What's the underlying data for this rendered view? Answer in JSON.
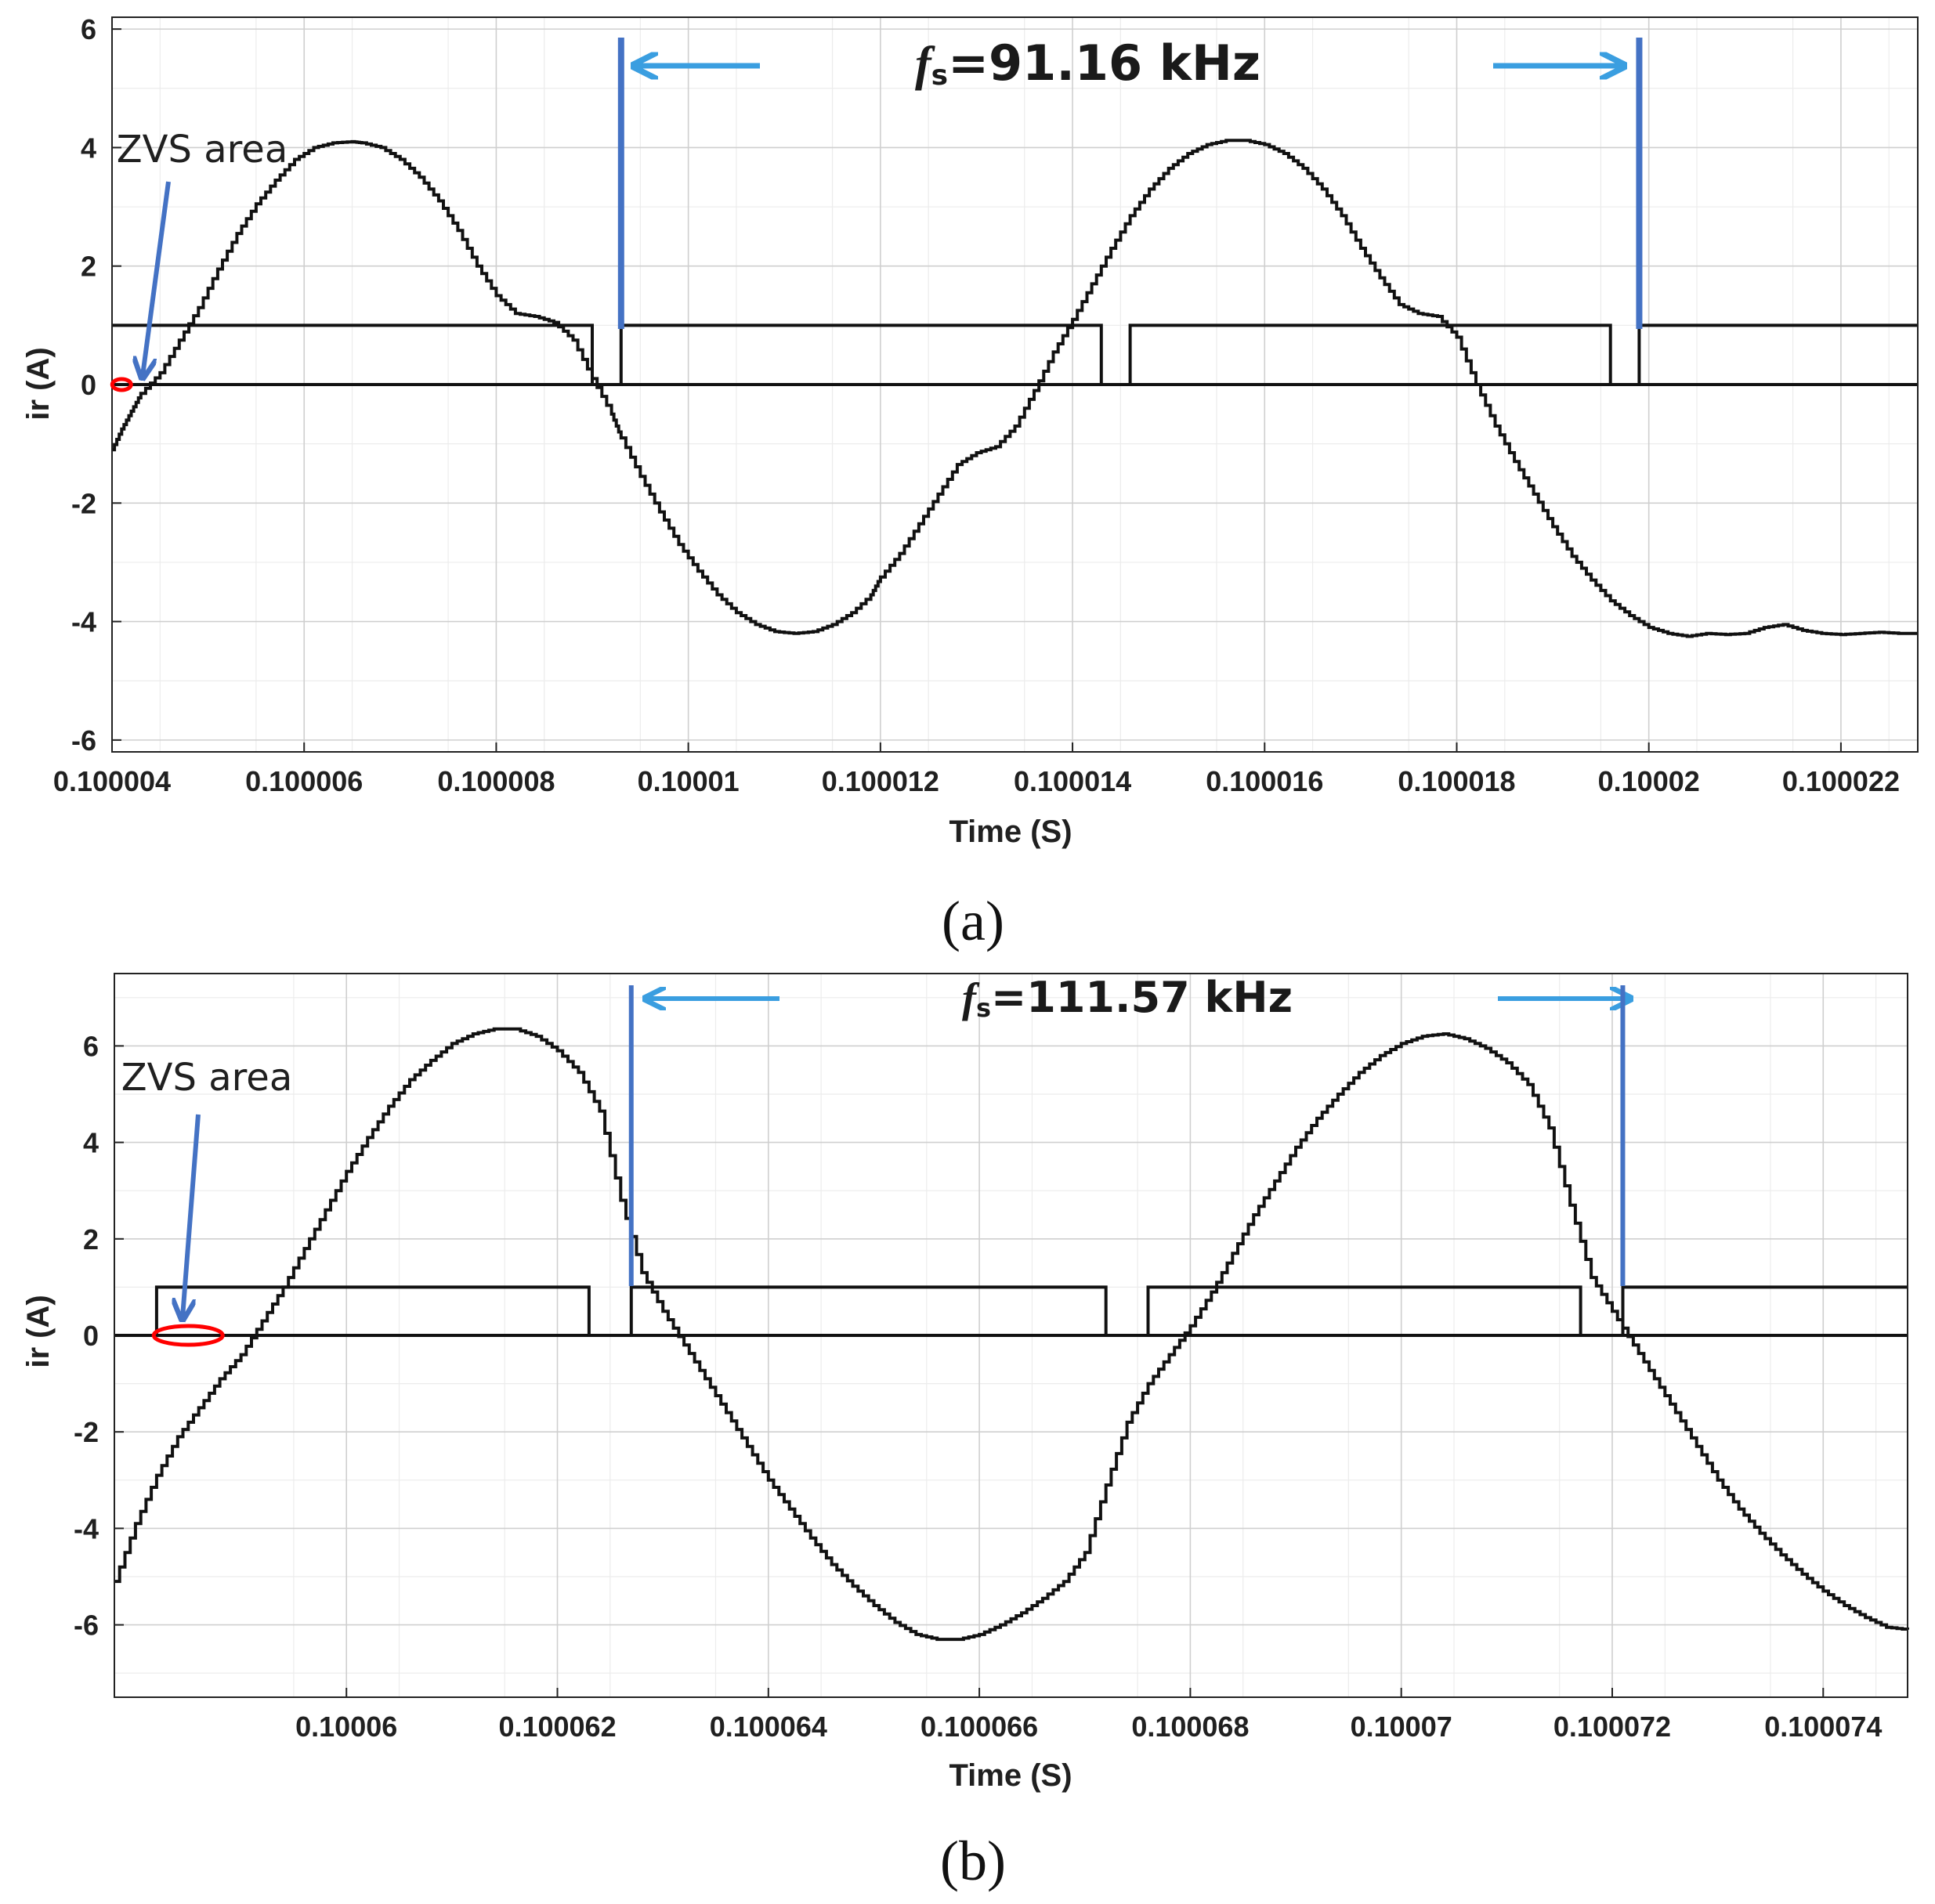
{
  "chart_data": [
    {
      "type": "line",
      "panel_label": "(a)",
      "xlabel": "Time (S)",
      "ylabel": "ir (A)",
      "xlim": [
        0.100004,
        0.1000228
      ],
      "ylim": [
        -6.2,
        6.2
      ],
      "x_ticks": [
        0.100004,
        0.100006,
        0.100008,
        0.10001,
        0.100012,
        0.100014,
        0.100016,
        0.100018,
        0.10002,
        0.100022
      ],
      "x_tick_labels": [
        "0.100004",
        "0.100006",
        "0.100008",
        "0.10001",
        "0.100012",
        "0.100014",
        "0.100016",
        "0.100018",
        "0.10002",
        "0.100022"
      ],
      "y_ticks": [
        -6,
        -4,
        -2,
        0,
        2,
        4,
        6
      ],
      "y_tick_labels": [
        "-6",
        "-4",
        "-2",
        "0",
        "2",
        "4",
        "6"
      ],
      "grid": true,
      "series": [
        {
          "name": "ir",
          "color": "#111111",
          "x": [
            0.100004,
            0.1000041,
            0.1000042,
            0.1000043,
            0.1000045,
            0.1000047,
            0.1000049,
            0.1000051,
            0.1000053,
            0.1000055,
            0.1000057,
            0.1000059,
            0.1000061,
            0.1000063,
            0.1000065,
            0.1000066,
            0.1000068,
            0.100007,
            0.1000072,
            0.1000074,
            0.1000076,
            0.1000078,
            0.100008,
            0.1000082,
            0.1000084,
            0.1000086,
            0.1000088,
            0.100009,
            0.1000092,
            0.1000093,
            0.1000095,
            0.1000097,
            0.1000099,
            0.1000101,
            0.1000103,
            0.1000105,
            0.1000107,
            0.1000109,
            0.1000111,
            0.1000113,
            0.1000115,
            0.1000117,
            0.1000119,
            0.100012,
            0.1000122,
            0.1000124,
            0.1000126,
            0.1000128,
            0.100013,
            0.1000132,
            0.1000134,
            0.1000136,
            0.1000138,
            0.100014,
            0.1000142,
            0.1000144,
            0.1000146,
            0.1000148,
            0.100015,
            0.1000152,
            0.1000154,
            0.1000156,
            0.1000158,
            0.100016,
            0.1000162,
            0.1000164,
            0.1000166,
            0.1000168,
            0.100017,
            0.1000172,
            0.1000174,
            0.1000176,
            0.1000178,
            0.100018,
            0.1000182,
            0.1000184,
            0.1000186,
            0.1000188,
            0.100019,
            0.1000192,
            0.1000194,
            0.1000196,
            0.1000198,
            0.10002,
            0.1000202,
            0.1000204,
            0.1000206,
            0.1000208,
            0.100021,
            0.1000212,
            0.1000214,
            0.1000216,
            0.1000218,
            0.100022,
            0.1000222,
            0.1000224,
            0.1000226,
            0.1000228
          ],
          "y": [
            -1.1,
            -0.75,
            -0.45,
            -0.15,
            0.2,
            0.75,
            1.3,
            1.95,
            2.55,
            3.05,
            3.45,
            3.8,
            4.0,
            4.08,
            4.1,
            4.08,
            4.0,
            3.8,
            3.5,
            3.1,
            2.6,
            2.0,
            1.5,
            1.2,
            1.15,
            1.05,
            0.75,
            0.1,
            -0.5,
            -0.9,
            -1.55,
            -2.15,
            -2.7,
            -3.15,
            -3.55,
            -3.85,
            -4.05,
            -4.17,
            -4.2,
            -4.17,
            -4.05,
            -3.85,
            -3.55,
            -3.25,
            -2.85,
            -2.35,
            -1.85,
            -1.35,
            -1.15,
            -1.05,
            -0.7,
            -0.1,
            0.55,
            1.1,
            1.7,
            2.3,
            2.85,
            3.3,
            3.65,
            3.9,
            4.05,
            4.12,
            4.12,
            4.05,
            3.9,
            3.65,
            3.3,
            2.85,
            2.3,
            1.8,
            1.35,
            1.2,
            1.15,
            0.8,
            0.0,
            -0.7,
            -1.3,
            -1.85,
            -2.4,
            -2.9,
            -3.3,
            -3.65,
            -3.9,
            -4.1,
            -4.2,
            -4.25,
            -4.2,
            -4.22,
            -4.2,
            -4.1,
            -4.05,
            -4.15,
            -4.2,
            -4.22,
            -4.2,
            -4.18,
            -4.2,
            -4.2
          ]
        },
        {
          "name": "gate signal",
          "color": "#111111",
          "x": [
            0.100004,
            0.100009,
            0.100009,
            0.1000093,
            0.1000093,
            0.1000143,
            0.1000143,
            0.1000146,
            0.1000146,
            0.1000196,
            0.1000196,
            0.1000199,
            0.1000199,
            0.1000228
          ],
          "y": [
            1,
            1,
            0,
            0,
            1,
            1,
            0,
            0,
            1,
            1,
            0,
            0,
            1,
            1
          ]
        }
      ],
      "annotations": {
        "zvs_label": "ZVS area",
        "fs_symbol": "f",
        "fs_subscript": "s",
        "fs_value": "=91.16 kHz",
        "period_markers_x": [
          0.1000093,
          0.1000199
        ],
        "zvs_ellipse_center": [
          0.1000041,
          0.0
        ],
        "arrow_color": "#3a9ee0",
        "marker_color": "#4472c4",
        "ellipse_color": "#ff0000"
      }
    },
    {
      "type": "line",
      "panel_label": "(b)",
      "xlabel": "Time (S)",
      "ylabel": "ir (A)",
      "xlim": [
        0.1000578,
        0.1000748
      ],
      "ylim": [
        -7.5,
        7.5
      ],
      "x_ticks": [
        0.10006,
        0.100062,
        0.100064,
        0.100066,
        0.100068,
        0.10007,
        0.100072,
        0.100074
      ],
      "x_tick_labels": [
        "0.10006",
        "0.100062",
        "0.100064",
        "0.100066",
        "0.100068",
        "0.10007",
        "0.100072",
        "0.100074"
      ],
      "y_ticks": [
        -6,
        -4,
        -2,
        0,
        2,
        4,
        6
      ],
      "y_tick_labels": [
        "-6",
        "-4",
        "-2",
        "0",
        "2",
        "4",
        "6"
      ],
      "grid": true,
      "series": [
        {
          "name": "ir",
          "color": "#111111",
          "x": [
            0.1000578,
            0.100058,
            0.1000582,
            0.1000584,
            0.1000586,
            0.1000588,
            0.100059,
            0.1000592,
            0.1000594,
            0.1000596,
            0.1000598,
            0.10006,
            0.1000602,
            0.1000604,
            0.1000606,
            0.1000608,
            0.100061,
            0.1000612,
            0.1000614,
            0.1000616,
            0.1000618,
            0.100062,
            0.1000622,
            0.1000624,
            0.1000626,
            0.1000628,
            0.100063,
            0.1000632,
            0.1000634,
            0.1000636,
            0.1000638,
            0.100064,
            0.1000642,
            0.1000644,
            0.1000646,
            0.1000648,
            0.100065,
            0.1000652,
            0.1000654,
            0.1000656,
            0.1000658,
            0.100066,
            0.1000662,
            0.1000664,
            0.1000666,
            0.1000668,
            0.100067,
            0.1000672,
            0.1000674,
            0.1000676,
            0.1000678,
            0.100068,
            0.1000682,
            0.1000684,
            0.1000686,
            0.1000688,
            0.100069,
            0.1000692,
            0.1000694,
            0.1000696,
            0.1000698,
            0.10007,
            0.1000702,
            0.1000704,
            0.1000706,
            0.1000708,
            0.100071,
            0.1000712,
            0.1000714,
            0.1000716,
            0.1000718,
            0.100072,
            0.1000722,
            0.1000724,
            0.1000726,
            0.1000728,
            0.100073,
            0.1000732,
            0.1000734,
            0.1000736,
            0.1000738,
            0.100074,
            0.1000742,
            0.1000744,
            0.1000746,
            0.1000748
          ],
          "y": [
            -5.1,
            -3.9,
            -2.9,
            -2.1,
            -1.5,
            -0.9,
            -0.4,
            0.3,
            1.0,
            1.8,
            2.6,
            3.4,
            4.1,
            4.75,
            5.3,
            5.7,
            6.05,
            6.25,
            6.35,
            6.35,
            6.2,
            5.9,
            5.45,
            4.65,
            2.8,
            1.3,
            0.5,
            -0.2,
            -0.9,
            -1.6,
            -2.3,
            -3.0,
            -3.6,
            -4.2,
            -4.75,
            -5.2,
            -5.6,
            -5.95,
            -6.2,
            -6.3,
            -6.3,
            -6.2,
            -6.0,
            -5.75,
            -5.45,
            -5.1,
            -4.5,
            -3.1,
            -1.8,
            -1.0,
            -0.4,
            0.2,
            0.9,
            1.7,
            2.5,
            3.2,
            3.9,
            4.5,
            5.0,
            5.45,
            5.8,
            6.05,
            6.2,
            6.25,
            6.15,
            5.95,
            5.65,
            5.2,
            4.3,
            2.7,
            1.2,
            0.5,
            -0.2,
            -0.9,
            -1.6,
            -2.3,
            -3.0,
            -3.6,
            -4.1,
            -4.55,
            -4.95,
            -5.3,
            -5.6,
            -5.85,
            -6.05,
            -6.1
          ]
        },
        {
          "name": "gate signal",
          "color": "#111111",
          "x": [
            0.1000582,
            0.1000582,
            0.1000623,
            0.1000623,
            0.1000627,
            0.1000627,
            0.1000672,
            0.1000672,
            0.1000676,
            0.1000676,
            0.1000717,
            0.1000717,
            0.1000721,
            0.1000721,
            0.1000748
          ],
          "y": [
            0,
            1,
            1,
            0,
            0,
            1,
            1,
            0,
            0,
            1,
            1,
            0,
            0,
            1,
            1
          ]
        }
      ],
      "annotations": {
        "zvs_label": "ZVS area",
        "fs_symbol": "f",
        "fs_subscript": "s",
        "fs_value": "=111.57 kHz",
        "period_markers_x": [
          0.1000627,
          0.1000721
        ],
        "zvs_ellipse_center": [
          0.1000585,
          0.0
        ],
        "arrow_color": "#3a9ee0",
        "marker_color": "#4472c4",
        "ellipse_color": "#ff0000"
      }
    }
  ]
}
